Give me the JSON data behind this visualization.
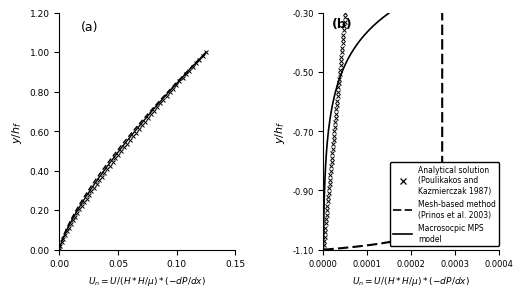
{
  "panel_a": {
    "label": "(a)",
    "xlabel": "$U_n = U/(H*H/\\mu)*(-dP/dx)$",
    "ylabel": "$y/h_f$",
    "xlim": [
      0.0,
      0.15
    ],
    "ylim": [
      0.0,
      1.2
    ],
    "xticks": [
      0.0,
      0.05,
      0.1,
      0.15
    ],
    "yticks": [
      0.0,
      0.2,
      0.4,
      0.6,
      0.8,
      1.0,
      1.2
    ]
  },
  "panel_b": {
    "label": "(b)",
    "xlabel": "$U_n = U/(H*H/\\mu)*(-dP/dx)$",
    "ylabel": "$y/h_f$",
    "xlim": [
      0.0,
      0.0004
    ],
    "ylim": [
      -1.1,
      -0.3
    ],
    "xticks": [
      0.0,
      0.0001,
      0.0002,
      0.0003,
      0.0004
    ],
    "yticks": [
      -1.1,
      -0.9,
      -0.7,
      -0.5,
      -0.3
    ]
  },
  "legend": {
    "analytical_label": "Analytical solution\n(Poulikakos and\nKazmierczak 1987)",
    "mesh_label": "Mesh-based method\n(Prinos et al. 2003)",
    "mps_label": "Macrosocpic MPS\nmodel"
  }
}
